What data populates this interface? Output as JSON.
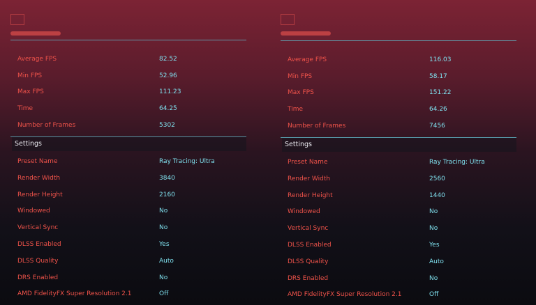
{
  "panels": [
    {
      "stats": [
        [
          "Average FPS",
          "82.52"
        ],
        [
          "Min FPS",
          "52.96"
        ],
        [
          "Max FPS",
          "111.23"
        ],
        [
          "Time",
          "64.25"
        ],
        [
          "Number of Frames",
          "5302"
        ]
      ],
      "settings_title": "Settings",
      "settings": [
        [
          "Preset Name",
          "Ray Tracing: Ultra"
        ],
        [
          "Render Width",
          "3840"
        ],
        [
          "Render Height",
          "2160"
        ],
        [
          "Windowed",
          "No"
        ],
        [
          "Vertical Sync",
          "No"
        ],
        [
          "DLSS Enabled",
          "Yes"
        ],
        [
          "DLSS Quality",
          "Auto"
        ],
        [
          "DRS Enabled",
          "No"
        ],
        [
          "AMD FidelityFX Super Resolution 2.1",
          "Off"
        ]
      ]
    },
    {
      "stats": [
        [
          "Average FPS",
          "116.03"
        ],
        [
          "Min FPS",
          "58.17"
        ],
        [
          "Max FPS",
          "151.22"
        ],
        [
          "Time",
          "64.26"
        ],
        [
          "Number of Frames",
          "7456"
        ]
      ],
      "settings_title": "Settings",
      "settings": [
        [
          "Preset Name",
          "Ray Tracing: Ultra"
        ],
        [
          "Render Width",
          "2560"
        ],
        [
          "Render Height",
          "1440"
        ],
        [
          "Windowed",
          "No"
        ],
        [
          "Vertical Sync",
          "No"
        ],
        [
          "DLSS Enabled",
          "Yes"
        ],
        [
          "DLSS Quality",
          "Auto"
        ],
        [
          "DRS Enabled",
          "No"
        ],
        [
          "AMD FidelityFX Super Resolution 2.1",
          "Off"
        ]
      ]
    }
  ]
}
